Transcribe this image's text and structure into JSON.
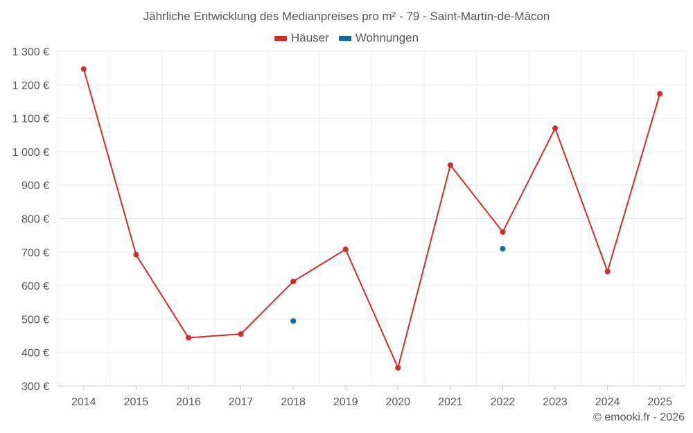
{
  "chart_data": {
    "type": "line",
    "title": "Jährliche Entwicklung des Medianpreises pro m² - 79 - Saint-Martin-de-Mâcon",
    "categories": [
      "2014",
      "2015",
      "2016",
      "2017",
      "2018",
      "2019",
      "2020",
      "2021",
      "2022",
      "2023",
      "2024",
      "2025"
    ],
    "series": [
      {
        "name": "Häuser",
        "color": "#d42a2a",
        "values": [
          1247,
          692,
          444,
          455,
          612,
          708,
          354,
          960,
          760,
          1070,
          642,
          1173
        ]
      },
      {
        "name": "Wohnungen",
        "color": "#0f6aa6",
        "values": [
          null,
          null,
          null,
          null,
          494,
          null,
          null,
          null,
          710,
          null,
          null,
          null
        ]
      }
    ],
    "ylim": [
      300,
      1300
    ],
    "yticks": [
      300,
      400,
      500,
      600,
      700,
      800,
      900,
      1000,
      1100,
      1200,
      1300
    ],
    "ytick_labels": [
      "300 €",
      "400 €",
      "500 €",
      "600 €",
      "700 €",
      "800 €",
      "900 €",
      "1 000 €",
      "1 100 €",
      "1 200 €",
      "1 300 €"
    ],
    "xlabel": "",
    "ylabel": "",
    "grid": true,
    "legend": "top-center"
  },
  "credit": "© emooki.fr - 2026"
}
